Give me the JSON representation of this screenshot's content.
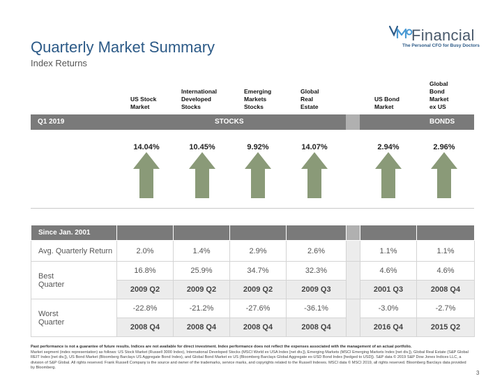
{
  "header": {
    "title": "Quarterly Market Summary",
    "subtitle": "Index Returns"
  },
  "logo": {
    "name": "Financial",
    "tagline": "The Personal CFO for Busy Doctors"
  },
  "columns": [
    {
      "label": "US Stock Market",
      "lines": [
        "US Stock",
        "Market"
      ]
    },
    {
      "label": "International Developed Stocks",
      "lines": [
        "International",
        "Developed",
        "Stocks"
      ]
    },
    {
      "label": "Emerging Markets Stocks",
      "lines": [
        "Emerging",
        "Markets",
        "Stocks"
      ]
    },
    {
      "label": "Global Real Estate",
      "lines": [
        "Global",
        "Real",
        "Estate"
      ]
    },
    {
      "label": "US Bond Market",
      "lines": [
        "US Bond",
        "Market"
      ]
    },
    {
      "label": "Global Bond Market ex US",
      "lines": [
        "Global",
        "Bond",
        "Market",
        "ex US"
      ]
    }
  ],
  "quarter_bar": {
    "period": "Q1 2019",
    "stocks_label": "STOCKS",
    "bonds_label": "BONDS"
  },
  "quarter_returns": [
    "14.04%",
    "10.45%",
    "9.92%",
    "14.07%",
    "2.94%",
    "2.96%"
  ],
  "arrow_direction": "up",
  "colors": {
    "arrow": "#8a9a78",
    "title": "#2c5a87",
    "bar": "#7a7a7a"
  },
  "history": {
    "header": "Since Jan. 2001",
    "avg_label": "Avg. Quarterly Return",
    "avg": [
      "2.0%",
      "1.4%",
      "2.9%",
      "2.6%",
      "1.1%",
      "1.1%"
    ],
    "best_label_1": "Best",
    "best_label_2": "Quarter",
    "best": [
      "16.8%",
      "25.9%",
      "34.7%",
      "32.3%",
      "4.6%",
      "4.6%"
    ],
    "best_q": [
      "2009 Q2",
      "2009 Q2",
      "2009 Q2",
      "2009 Q3",
      "2001 Q3",
      "2008 Q4"
    ],
    "worst_label_1": "Worst",
    "worst_label_2": "Quarter",
    "worst": [
      "-22.8%",
      "-21.2%",
      "-27.6%",
      "-36.1%",
      "-3.0%",
      "-2.7%"
    ],
    "worst_q": [
      "2008 Q4",
      "2008 Q4",
      "2008 Q4",
      "2008 Q4",
      "2016 Q4",
      "2015 Q2"
    ]
  },
  "footer": {
    "bold": "Past performance is not a guarantee of future results. Indices are not available for direct investment. Index performance does not reflect the expenses associated with the management of an actual portfolio.",
    "text": "Market segment (index representation) as follows: US Stock Market (Russell 3000 Index), International Developed Stocks (MSCI World ex USA Index [net div.]), Emerging Markets (MSCI Emerging Markets Index [net div.]), Global Real Estate (S&P Global REIT Index [net div.]), US Bond Market (Bloomberg Barclays US Aggregate Bond Index), and Global Bond Market ex US (Bloomberg Barclays Global Aggregate ex-USD Bond Index [hedged to USD]). S&P data © 2019 S&P Dow Jones Indices LLC, a division of S&P Global. All rights reserved. Frank Russell Company is the source and owner of the trademarks, service marks, and copyrights related to the Russell Indexes. MSCI data © MSCI 2019, all rights reserved. Bloomberg Barclays data provided by Bloomberg."
  },
  "page_number": "3"
}
